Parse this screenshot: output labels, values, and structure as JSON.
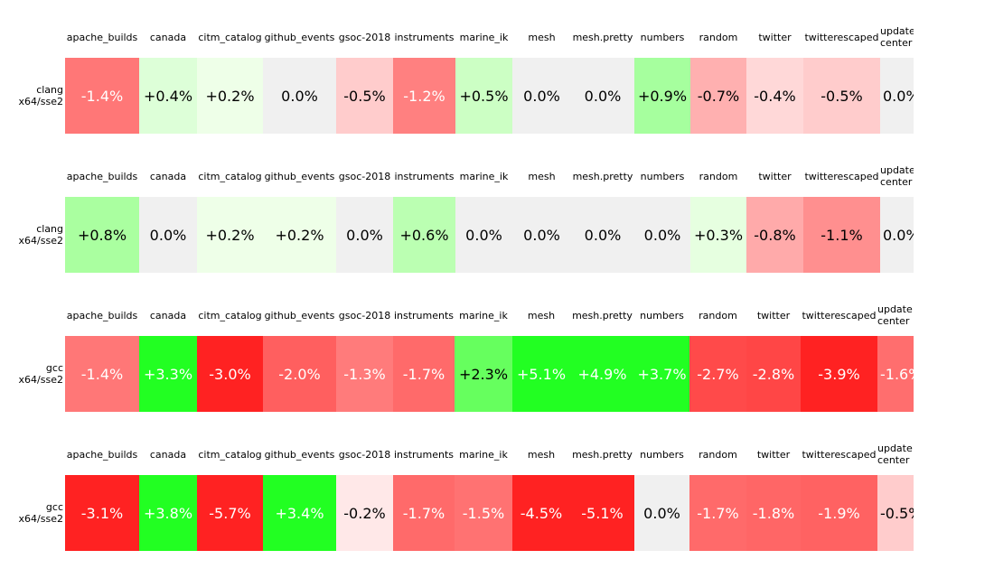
{
  "tables": [
    {
      "row_label": [
        "clang",
        "x64/sse2"
      ],
      "columns": [
        "apache_builds",
        "canada",
        "citm_catalog",
        "github_events",
        "gsoc-2018",
        "instruments",
        "marine_ik",
        "mesh",
        "mesh.pretty",
        "numbers",
        "random",
        "twitter",
        "twitterescaped",
        "update center"
      ],
      "cells": [
        "-1.4%",
        "+0.4%",
        "+0.2%",
        "0.0%",
        "-0.5%",
        "-1.2%",
        "+0.5%",
        "0.0%",
        "0.0%",
        "+0.9%",
        "-0.7%",
        "-0.4%",
        "-0.5%",
        "0.0%"
      ],
      "colors": [
        "#ff7777",
        "#ddffd8",
        "#eeffe8",
        "#f0f0f0",
        "#ffcccc",
        "#ff8080",
        "#ccffc4",
        "#f0f0f0",
        "#f0f0f0",
        "#a6ff9e",
        "#ffb0b0",
        "#ffd8d8",
        "#ffcccc",
        "#f0f0f0"
      ]
    },
    {
      "row_label": [
        "clang",
        "x64/sse2"
      ],
      "columns": [
        "apache_builds",
        "canada",
        "citm_catalog",
        "github_events",
        "gsoc-2018",
        "instruments",
        "marine_ik",
        "mesh",
        "mesh.pretty",
        "numbers",
        "random",
        "twitter",
        "twitterescaped",
        "update center"
      ],
      "cells": [
        "+0.8%",
        "0.0%",
        "+0.2%",
        "+0.2%",
        "0.0%",
        "+0.6%",
        "0.0%",
        "0.0%",
        "0.0%",
        "0.0%",
        "+0.3%",
        "-0.8%",
        "-1.1%",
        "0.0%"
      ],
      "colors": [
        "#aaffa0",
        "#f0f0f0",
        "#eeffe8",
        "#eeffe8",
        "#f0f0f0",
        "#bbffb2",
        "#f0f0f0",
        "#f0f0f0",
        "#f0f0f0",
        "#f0f0f0",
        "#e6ffe0",
        "#ffaaaa",
        "#ff8f8f",
        "#f0f0f0"
      ]
    },
    {
      "row_label": [
        "gcc",
        "x64/sse2"
      ],
      "columns": [
        "apache_builds",
        "canada",
        "citm_catalog",
        "github_events",
        "gsoc-2018",
        "instruments",
        "marine_ik",
        "mesh",
        "mesh.pretty",
        "numbers",
        "random",
        "twitter",
        "twitterescaped",
        "update center"
      ],
      "cells": [
        "-1.4%",
        "+3.3%",
        "-3.0%",
        "-2.0%",
        "-1.3%",
        "-1.7%",
        "+2.3%",
        "+5.1%",
        "+4.9%",
        "+3.7%",
        "-2.7%",
        "-2.8%",
        "-3.9%",
        "-1.6%"
      ],
      "colors": [
        "#ff7777",
        "#22ff22",
        "#ff2222",
        "#ff5f5f",
        "#ff7b7b",
        "#ff6a6a",
        "#66ff5e",
        "#22ff22",
        "#22ff22",
        "#22ff22",
        "#ff4a4a",
        "#ff4646",
        "#ff2222",
        "#ff6e6e"
      ]
    },
    {
      "row_label": [
        "gcc",
        "x64/sse2"
      ],
      "columns": [
        "apache_builds",
        "canada",
        "citm_catalog",
        "github_events",
        "gsoc-2018",
        "instruments",
        "marine_ik",
        "mesh",
        "mesh.pretty",
        "numbers",
        "random",
        "twitter",
        "twitterescaped",
        "update center"
      ],
      "cells": [
        "-3.1%",
        "+3.8%",
        "-5.7%",
        "+3.4%",
        "-0.2%",
        "-1.7%",
        "-1.5%",
        "-4.5%",
        "-5.1%",
        "0.0%",
        "-1.7%",
        "-1.8%",
        "-1.9%",
        "-0.5%"
      ],
      "colors": [
        "#ff2222",
        "#22ff22",
        "#ff2222",
        "#22ff22",
        "#ffe8e8",
        "#ff6a6a",
        "#ff7272",
        "#ff2222",
        "#ff2222",
        "#f0f0f0",
        "#ff6a6a",
        "#ff6666",
        "#ff6262",
        "#ffcccc"
      ]
    }
  ]
}
